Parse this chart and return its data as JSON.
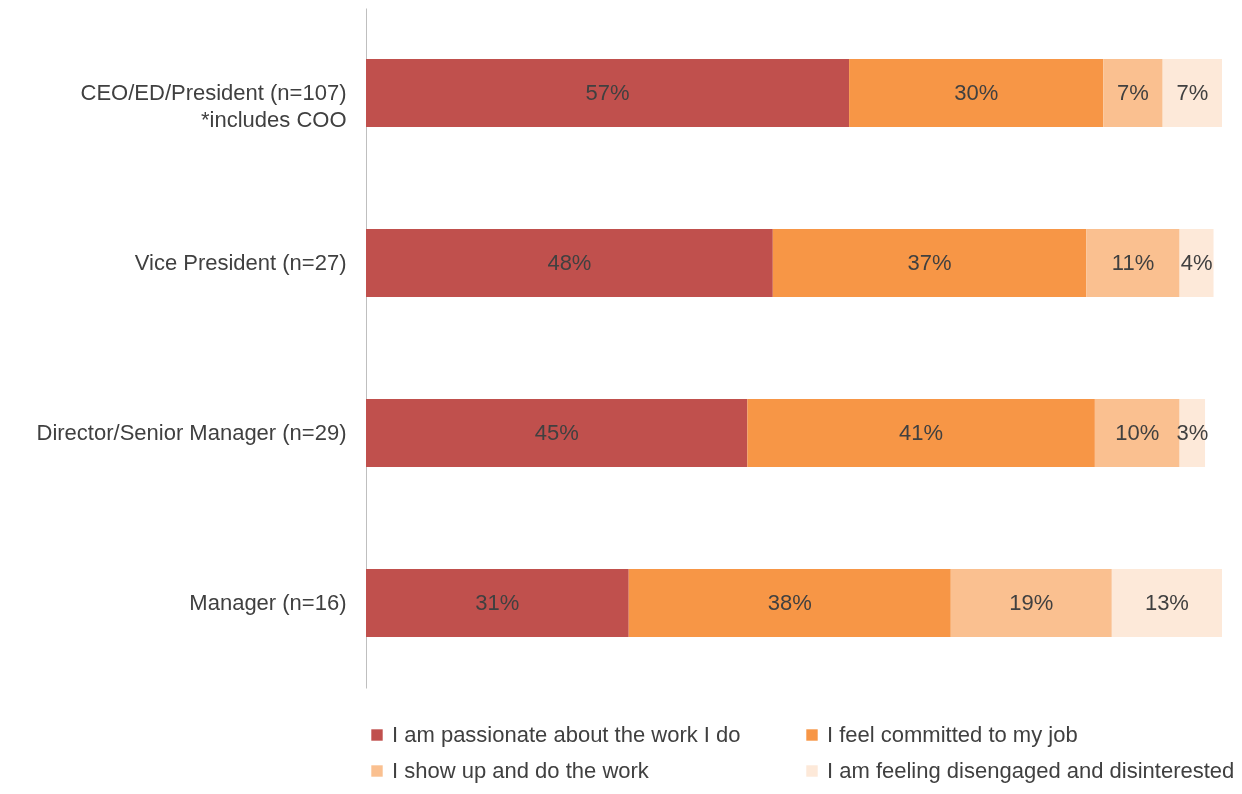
{
  "chart_data": {
    "type": "bar",
    "orientation": "horizontal",
    "stacked": true,
    "tick_labels": "y",
    "legend": "bottom",
    "categories": [
      "CEO/ED/President (n=107)\n*includes COO",
      "Vice President (n=27)",
      "Director/Senior Manager (n=29)",
      "Manager (n=16)"
    ],
    "series": [
      {
        "name": "I am passionate about the work I do",
        "color": "#c0504d",
        "values": [
          57,
          48,
          45,
          31
        ],
        "value_labels": [
          "57%",
          "48%",
          "45%",
          "31%"
        ]
      },
      {
        "name": "I feel committed to my job",
        "color": "#f79646",
        "values": [
          30,
          37,
          41,
          38
        ],
        "value_labels": [
          "30%",
          "37%",
          "41%",
          "38%"
        ]
      },
      {
        "name": "I show up and do the work",
        "color": "#fac090",
        "values": [
          7,
          11,
          10,
          19
        ],
        "value_labels": [
          "7%",
          "11%",
          "10%",
          "19%"
        ]
      },
      {
        "name": "I am feeling disengaged and disinterested",
        "color": "#fde9d9",
        "values": [
          7,
          4,
          3,
          13
        ],
        "value_labels": [
          "7%",
          "4%",
          "3%",
          "13%"
        ]
      }
    ]
  }
}
